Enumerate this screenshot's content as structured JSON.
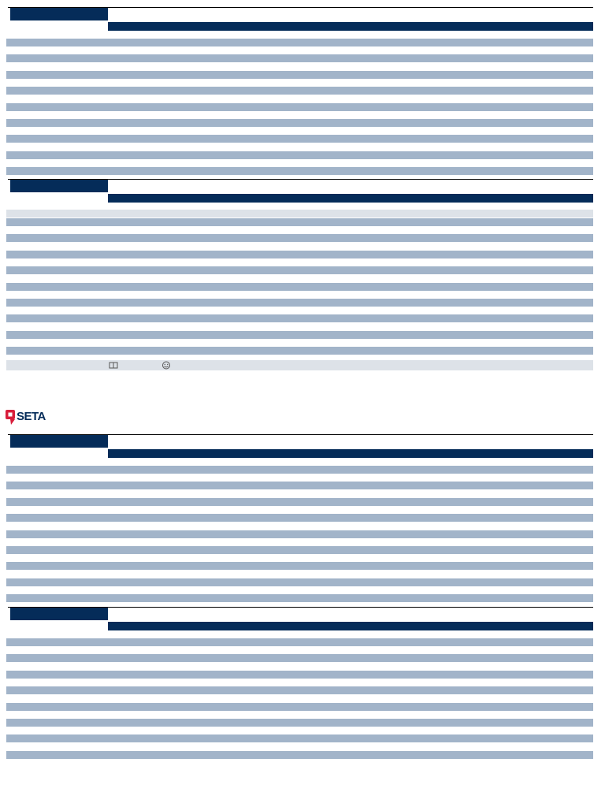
{
  "logo": {
    "text": "SETA"
  }
}
